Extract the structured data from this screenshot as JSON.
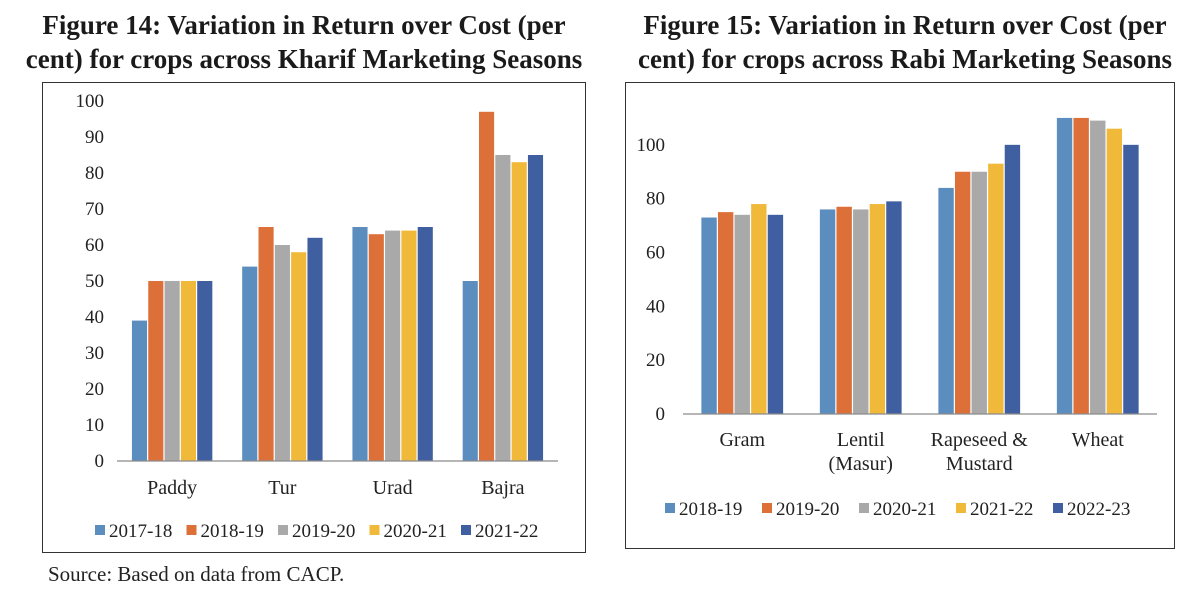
{
  "source_note": "Source: Based on data from CACP.",
  "chart_data": [
    {
      "type": "bar",
      "title_line1": "Figure 14: Variation in Return over Cost (per",
      "title_line2": "cent) for crops across Kharif Marketing Seasons",
      "categories": [
        "Paddy",
        "Tur",
        "Urad",
        "Bajra"
      ],
      "series": [
        {
          "name": "2017-18",
          "color": "#5B8DBF",
          "values": [
            39,
            54,
            65,
            50
          ]
        },
        {
          "name": "2018-19",
          "color": "#DC7038",
          "values": [
            50,
            65,
            63,
            97
          ]
        },
        {
          "name": "2019-20",
          "color": "#A9A9A9",
          "values": [
            50,
            60,
            64,
            85
          ]
        },
        {
          "name": "2020-21",
          "color": "#F0B93A",
          "values": [
            50,
            58,
            64,
            83
          ]
        },
        {
          "name": "2021-22",
          "color": "#3F5FA0",
          "values": [
            50,
            62,
            65,
            85
          ]
        }
      ],
      "ylim": [
        0,
        100
      ],
      "yticks": [
        0,
        10,
        20,
        30,
        40,
        50,
        60,
        70,
        80,
        90,
        100
      ],
      "xlabel": "",
      "ylabel": "",
      "grid": false,
      "legend": "bottom"
    },
    {
      "type": "bar",
      "title_line1": "Figure 15: Variation in Return over Cost (per",
      "title_line2": "cent) for crops across Rabi Marketing Seasons",
      "categories": [
        [
          "Gram"
        ],
        [
          "Lentil",
          "(Masur)"
        ],
        [
          "Rapeseed &",
          "Mustard"
        ],
        [
          "Wheat"
        ]
      ],
      "series": [
        {
          "name": "2018-19",
          "color": "#5B8DBF",
          "values": [
            73,
            76,
            84,
            110
          ]
        },
        {
          "name": "2019-20",
          "color": "#DC7038",
          "values": [
            75,
            77,
            90,
            110
          ]
        },
        {
          "name": "2020-21",
          "color": "#A9A9A9",
          "values": [
            74,
            76,
            90,
            109
          ]
        },
        {
          "name": "2021-22",
          "color": "#F0B93A",
          "values": [
            78,
            78,
            93,
            106
          ]
        },
        {
          "name": "2022-23",
          "color": "#3F5FA0",
          "values": [
            74,
            79,
            100,
            100
          ]
        }
      ],
      "ylim": [
        0,
        120
      ],
      "yticks": [
        0,
        20,
        40,
        60,
        80,
        100
      ],
      "xlabel": "",
      "ylabel": "",
      "grid": false,
      "legend": "bottom"
    }
  ]
}
